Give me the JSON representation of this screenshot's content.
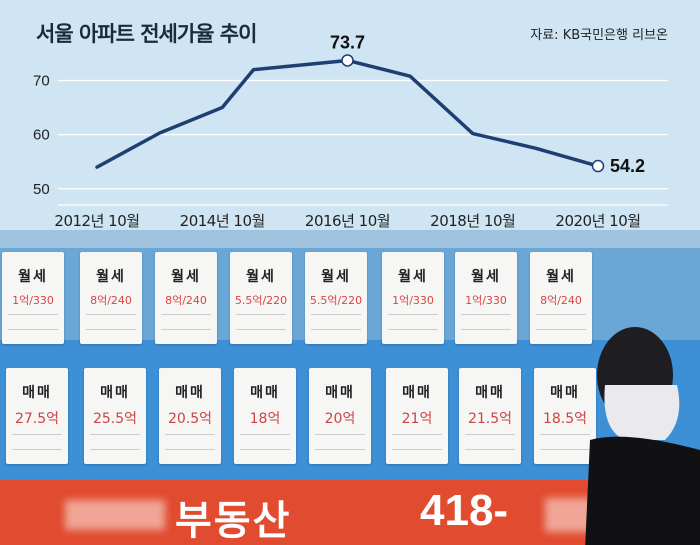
{
  "chart_data": {
    "type": "line",
    "title": "서울 아파트 전세가율 추이",
    "source": "자료: KB국민은행 리브온",
    "x": [
      "2012-10",
      "2013-10",
      "2014-10",
      "2015-04",
      "2016-10",
      "2017-10",
      "2018-10",
      "2019-10",
      "2020-10"
    ],
    "values": [
      54.0,
      60.3,
      65.0,
      72.0,
      73.7,
      70.8,
      60.2,
      57.5,
      54.2
    ],
    "xticks": [
      "2012년 10월",
      "2014년 10월",
      "2016년 10월",
      "2018년 10월",
      "2020년 10월"
    ],
    "yticks": [
      50,
      60,
      70
    ],
    "ylim": [
      47,
      76
    ],
    "annotations": [
      {
        "label": "73.7",
        "index": 4
      },
      {
        "label": "54.2",
        "index": 8
      }
    ],
    "grid": true,
    "line_color": "#1f3f73",
    "marker_color": "#ffffff"
  },
  "photo": {
    "notices_top": [
      {
        "kind": "월세",
        "price": "1억/330"
      },
      {
        "kind": "월세",
        "price": "8억/240"
      },
      {
        "kind": "월세",
        "price": "8억/240"
      },
      {
        "kind": "월세",
        "price": "5.5억/220"
      },
      {
        "kind": "월세",
        "price": "5.5억/220"
      },
      {
        "kind": "월세",
        "price": "1억/330"
      },
      {
        "kind": "월세",
        "price": "1억/330"
      },
      {
        "kind": "월세",
        "price": "8억/240"
      }
    ],
    "notices_bottom": [
      {
        "kind": "매매",
        "price": "27.5억"
      },
      {
        "kind": "매매",
        "price": "25.5억"
      },
      {
        "kind": "매매",
        "price": "20.5억"
      },
      {
        "kind": "매매",
        "price": "18억"
      },
      {
        "kind": "매매",
        "price": "20억"
      },
      {
        "kind": "매매",
        "price": "21억"
      },
      {
        "kind": "매매",
        "price": "21.5억"
      },
      {
        "kind": "매매",
        "price": "18.5억"
      }
    ],
    "sign_text": "부동산",
    "sign_phone": "418-"
  }
}
